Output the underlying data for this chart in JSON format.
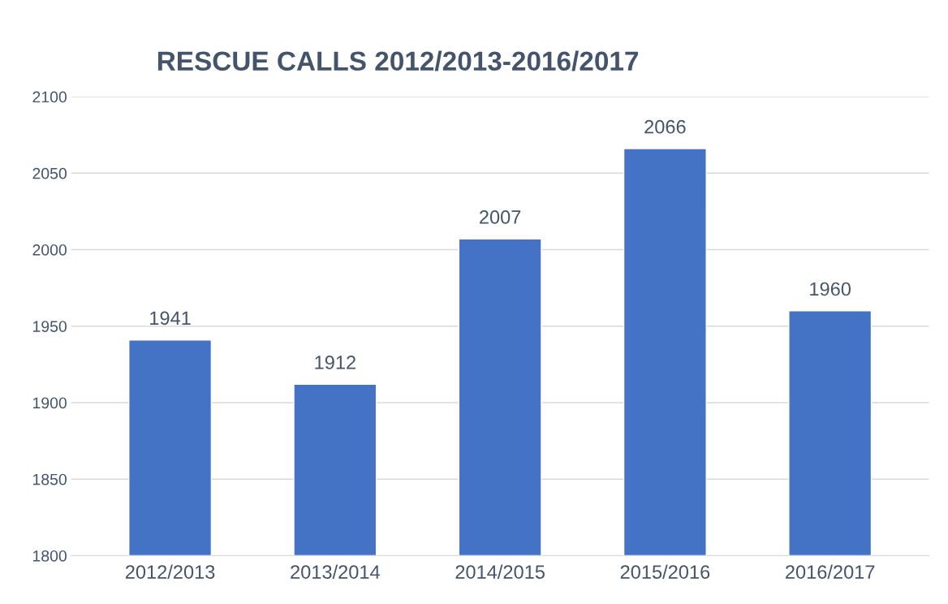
{
  "chart_data": {
    "type": "bar",
    "title": "RESCUE CALLS 2012/2013-2016/2017",
    "categories": [
      "2012/2013",
      "2013/2014",
      "2014/2015",
      "2015/2016",
      "2016/2017"
    ],
    "values": [
      1941,
      1912,
      2007,
      2066,
      1960
    ],
    "color": "#4472c4",
    "ylim": [
      1800,
      2100
    ],
    "yticks": [
      1800,
      1850,
      1900,
      1950,
      2000,
      2050,
      2100
    ],
    "grid": "y",
    "data_labels": true,
    "legend": false
  }
}
